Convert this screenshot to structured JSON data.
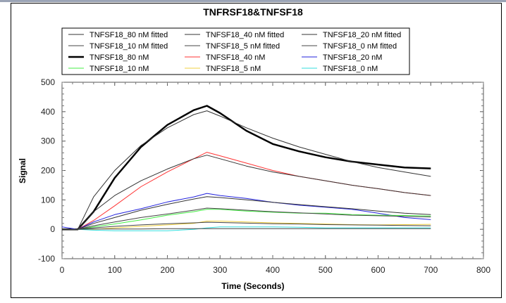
{
  "chart_data": {
    "type": "line",
    "title": "TNFRSF18&TNFSF18",
    "xlabel": "Time (Seconds)",
    "ylabel": "Signal",
    "xlim": [
      0,
      800
    ],
    "ylim": [
      -100,
      500
    ],
    "xticks": [
      0,
      100,
      200,
      300,
      400,
      500,
      600,
      700,
      800
    ],
    "yticks": [
      -100,
      0,
      100,
      200,
      300,
      400,
      500
    ],
    "grid": false,
    "legend_position": "top",
    "x": [
      0,
      30,
      60,
      100,
      150,
      200,
      250,
      275,
      300,
      350,
      400,
      450,
      500,
      550,
      600,
      650,
      700
    ],
    "series": [
      {
        "name": "TNFSF18_80 nM fitted",
        "color": "#333333",
        "width": 1,
        "values": [
          0,
          0,
          110,
          200,
          285,
          345,
          390,
          403,
          385,
          345,
          310,
          280,
          255,
          230,
          210,
          195,
          180
        ]
      },
      {
        "name": "TNFSF18_40 nM fitted",
        "color": "#333333",
        "width": 1,
        "values": [
          0,
          0,
          60,
          115,
          165,
          205,
          240,
          252,
          240,
          215,
          195,
          180,
          165,
          150,
          138,
          125,
          115
        ]
      },
      {
        "name": "TNFSF18_20 nM fitted",
        "color": "#333333",
        "width": 1,
        "values": [
          0,
          0,
          20,
          40,
          65,
          85,
          103,
          111,
          108,
          100,
          92,
          84,
          77,
          70,
          62,
          55,
          50
        ]
      },
      {
        "name": "TNFSF18_10 nM fitted",
        "color": "#444444",
        "width": 1,
        "values": [
          0,
          0,
          12,
          25,
          40,
          52,
          65,
          72,
          70,
          65,
          60,
          56,
          52,
          48,
          46,
          44,
          42
        ]
      },
      {
        "name": "TNFSF18_5 nM fitted",
        "color": "#444444",
        "width": 1,
        "values": [
          0,
          0,
          5,
          10,
          15,
          19,
          22,
          24,
          23,
          21,
          19,
          18,
          16,
          15,
          14,
          13,
          12
        ]
      },
      {
        "name": "TNFSF18_0 nM fitted",
        "color": "#444444",
        "width": 1,
        "values": [
          0,
          0,
          1,
          1,
          1,
          2,
          2,
          2,
          2,
          2,
          2,
          2,
          2,
          2,
          2,
          2,
          2
        ]
      },
      {
        "name": "TNFSF18_80 nM",
        "color": "#000000",
        "width": 2.5,
        "values": [
          0,
          0,
          60,
          175,
          280,
          355,
          405,
          420,
          395,
          335,
          290,
          265,
          245,
          230,
          220,
          210,
          207
        ]
      },
      {
        "name": "TNFSF18_40 nM",
        "color": "#ff3333",
        "width": 1,
        "values": [
          0,
          0,
          30,
          80,
          145,
          195,
          240,
          262,
          250,
          225,
          200,
          180,
          165,
          150,
          138,
          125,
          115
        ]
      },
      {
        "name": "TNFSF18_20 nM",
        "color": "#2222dd",
        "width": 1,
        "values": [
          8,
          0,
          25,
          50,
          70,
          93,
          110,
          122,
          115,
          105,
          92,
          82,
          75,
          68,
          55,
          40,
          33
        ]
      },
      {
        "name": "TNFSF18_10 nM",
        "color": "#44ee44",
        "width": 1,
        "values": [
          0,
          0,
          8,
          18,
          32,
          48,
          60,
          68,
          68,
          62,
          58,
          55,
          55,
          50,
          48,
          47,
          45
        ]
      },
      {
        "name": "TNFSF18_5 nM",
        "color": "#f0d040",
        "width": 1,
        "values": [
          0,
          0,
          0,
          5,
          10,
          15,
          20,
          28,
          28,
          25,
          22,
          20,
          18,
          16,
          15,
          16,
          17
        ]
      },
      {
        "name": "TNFSF18_0 nM",
        "color": "#33dddd",
        "width": 1,
        "values": [
          0,
          0,
          -3,
          -5,
          -5,
          -5,
          0,
          5,
          8,
          8,
          8,
          7,
          5,
          5,
          5,
          5,
          5
        ]
      }
    ]
  }
}
